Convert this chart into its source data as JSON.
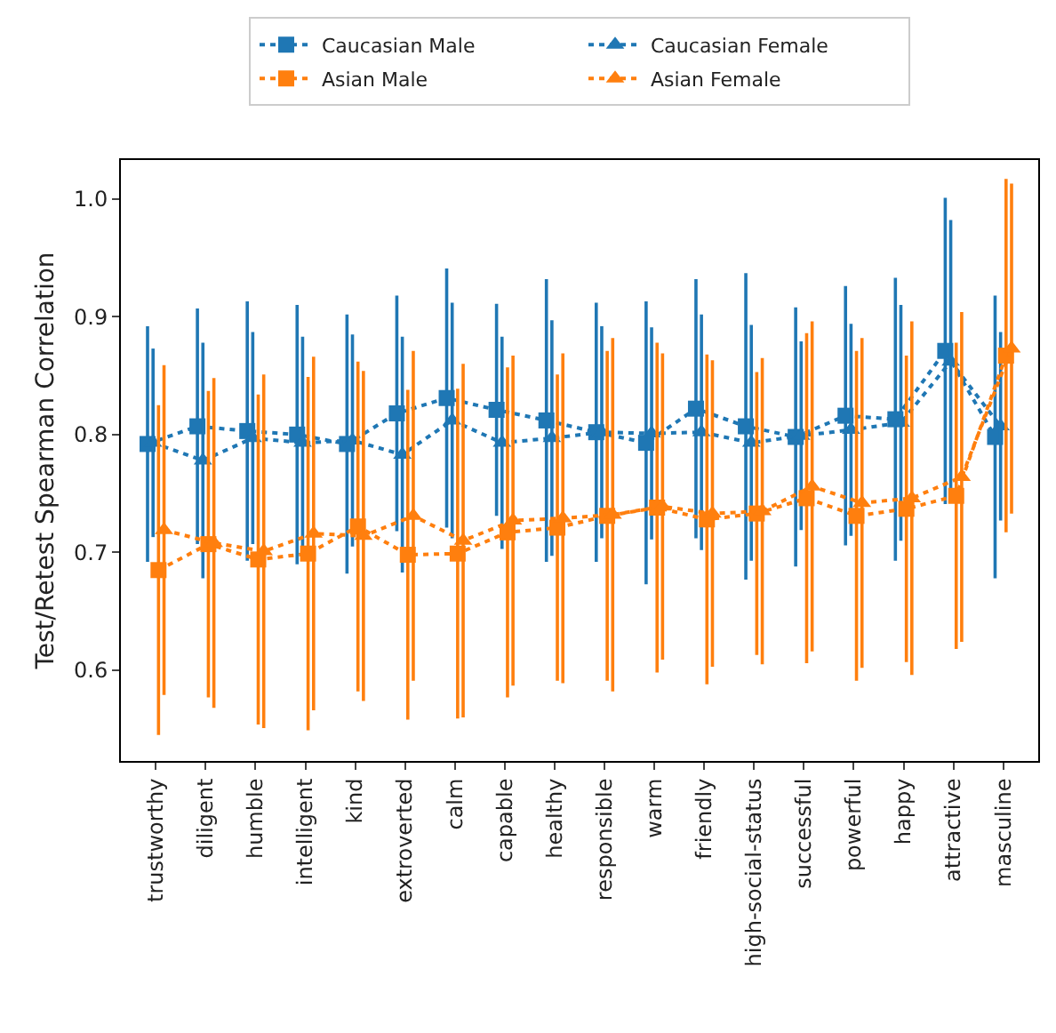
{
  "chart_data": {
    "type": "line",
    "ylabel": "Test/Retest Spearman Correlation",
    "categories": [
      "trustworthy",
      "diligent",
      "humble",
      "intelligent",
      "kind",
      "extroverted",
      "calm",
      "capable",
      "healthy",
      "responsible",
      "warm",
      "friendly",
      "high-social-status",
      "successful",
      "powerful",
      "happy",
      "attractive",
      "masculine"
    ],
    "series": [
      {
        "name": "Caucasian Male",
        "color": "#1f77b4",
        "marker": "square",
        "values": [
          0.792,
          0.807,
          0.803,
          0.8,
          0.792,
          0.818,
          0.831,
          0.821,
          0.812,
          0.802,
          0.793,
          0.822,
          0.807,
          0.798,
          0.816,
          0.813,
          0.871,
          0.798
        ],
        "errors": [
          0.1,
          0.1,
          0.11,
          0.11,
          0.11,
          0.1,
          0.11,
          0.09,
          0.12,
          0.11,
          0.12,
          0.11,
          0.13,
          0.11,
          0.11,
          0.12,
          0.13,
          0.12
        ]
      },
      {
        "name": "Caucasian Female",
        "color": "#1f77b4",
        "marker": "triangle",
        "values": [
          0.793,
          0.778,
          0.797,
          0.793,
          0.795,
          0.783,
          0.812,
          0.793,
          0.797,
          0.802,
          0.801,
          0.802,
          0.793,
          0.799,
          0.804,
          0.81,
          0.862,
          0.807
        ],
        "errors": [
          0.08,
          0.1,
          0.09,
          0.09,
          0.09,
          0.1,
          0.1,
          0.09,
          0.1,
          0.09,
          0.09,
          0.1,
          0.1,
          0.08,
          0.09,
          0.1,
          0.12,
          0.08
        ]
      },
      {
        "name": "Asian Male",
        "color": "#ff7f0e",
        "marker": "square",
        "values": [
          0.685,
          0.707,
          0.694,
          0.699,
          0.722,
          0.698,
          0.699,
          0.717,
          0.721,
          0.731,
          0.738,
          0.728,
          0.733,
          0.746,
          0.731,
          0.737,
          0.748,
          0.867
        ],
        "errors": [
          0.14,
          0.13,
          0.14,
          0.15,
          0.14,
          0.14,
          0.14,
          0.14,
          0.13,
          0.14,
          0.14,
          0.14,
          0.12,
          0.14,
          0.14,
          0.13,
          0.13,
          0.15
        ]
      },
      {
        "name": "Asian Female",
        "color": "#ff7f0e",
        "marker": "triangle",
        "values": [
          0.719,
          0.708,
          0.701,
          0.716,
          0.714,
          0.731,
          0.71,
          0.727,
          0.729,
          0.732,
          0.739,
          0.733,
          0.735,
          0.756,
          0.742,
          0.746,
          0.764,
          0.873
        ],
        "errors": [
          0.14,
          0.14,
          0.15,
          0.15,
          0.14,
          0.14,
          0.15,
          0.14,
          0.14,
          0.15,
          0.13,
          0.13,
          0.13,
          0.14,
          0.14,
          0.15,
          0.14,
          0.14
        ]
      }
    ],
    "ylim": [
      0.523,
      1.033
    ],
    "yticks": [
      0.6,
      0.7,
      0.8,
      0.9,
      {
        "value": 1,
        "label": "1.0"
      }
    ],
    "line_style": "dotted",
    "grid": false,
    "legend": "top"
  }
}
